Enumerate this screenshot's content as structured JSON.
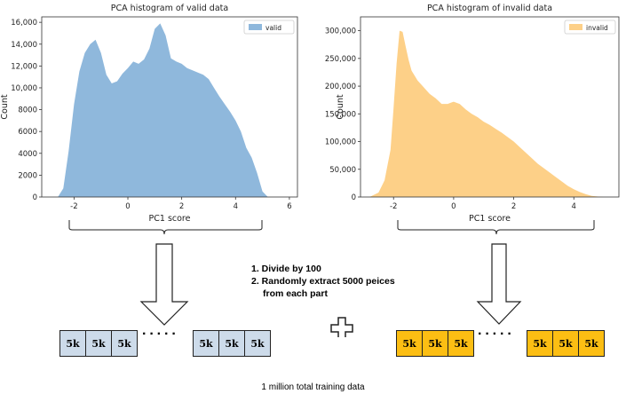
{
  "chart_data": [
    {
      "type": "area",
      "title": "PCA histogram of valid data",
      "xlabel": "PC1 score",
      "ylabel": "Count",
      "xlim": [
        -3.2,
        6.3
      ],
      "ylim": [
        0,
        16500
      ],
      "xticks": [
        -2,
        0,
        2,
        4,
        6
      ],
      "yticks": [
        0,
        2000,
        4000,
        6000,
        8000,
        10000,
        12000,
        14000,
        16000
      ],
      "ytick_labels": [
        "0",
        "2000",
        "4000",
        "6000",
        "8000",
        "10,000",
        "12,000",
        "14,000",
        "16,000"
      ],
      "legend_placement": "top-right",
      "color": "#8fb8dc",
      "series": [
        {
          "name": "valid",
          "x": [
            -2.6,
            -2.4,
            -2.2,
            -2.0,
            -1.8,
            -1.6,
            -1.4,
            -1.2,
            -1.0,
            -0.8,
            -0.6,
            -0.4,
            -0.2,
            0.0,
            0.2,
            0.4,
            0.6,
            0.8,
            1.0,
            1.2,
            1.4,
            1.6,
            1.8,
            2.0,
            2.2,
            2.4,
            2.6,
            2.8,
            3.0,
            3.2,
            3.4,
            3.6,
            3.8,
            4.0,
            4.2,
            4.4,
            4.6,
            4.8,
            5.0,
            5.2
          ],
          "y": [
            0,
            800,
            4200,
            8500,
            11500,
            13200,
            14000,
            14400,
            13200,
            11200,
            10400,
            10600,
            11300,
            11800,
            12400,
            12200,
            12600,
            13600,
            15400,
            15900,
            14800,
            12700,
            12400,
            12200,
            11800,
            11600,
            11400,
            11200,
            10800,
            10000,
            9200,
            8500,
            7800,
            7000,
            6000,
            4500,
            3600,
            2200,
            500,
            0
          ]
        }
      ]
    },
    {
      "type": "area",
      "title": "PCA histogram of invalid data",
      "xlabel": "PC1 score",
      "ylabel": "Count",
      "xlim": [
        -3.1,
        5.5
      ],
      "ylim": [
        0,
        325000
      ],
      "xticks": [
        -2,
        0,
        2,
        4
      ],
      "yticks": [
        0,
        50000,
        100000,
        150000,
        200000,
        250000,
        300000
      ],
      "ytick_labels": [
        "0",
        "50,000",
        "100,000",
        "150,000",
        "200,000",
        "250,000",
        "300,000"
      ],
      "legend_placement": "top-right",
      "color": "#fdd088",
      "series": [
        {
          "name": "invalid",
          "x": [
            -2.8,
            -2.5,
            -2.3,
            -2.1,
            -2.0,
            -1.9,
            -1.8,
            -1.7,
            -1.6,
            -1.5,
            -1.4,
            -1.2,
            -1.0,
            -0.8,
            -0.6,
            -0.4,
            -0.2,
            0.0,
            0.2,
            0.4,
            0.6,
            0.8,
            1.0,
            1.2,
            1.4,
            1.6,
            1.8,
            2.0,
            2.2,
            2.4,
            2.6,
            2.8,
            3.0,
            3.2,
            3.4,
            3.6,
            3.8,
            4.0,
            4.2,
            4.4,
            4.6,
            4.8,
            5.0
          ],
          "y": [
            0,
            8000,
            30000,
            85000,
            160000,
            240000,
            300000,
            298000,
            272000,
            248000,
            228000,
            210000,
            198000,
            186000,
            178000,
            168000,
            168000,
            172000,
            168000,
            158000,
            150000,
            144000,
            136000,
            130000,
            123000,
            116000,
            108000,
            100000,
            90000,
            80000,
            70000,
            60000,
            52000,
            44000,
            36000,
            28000,
            20000,
            14000,
            9000,
            5000,
            2000,
            800,
            0
          ]
        }
      ]
    }
  ],
  "steps": {
    "step1": "1. Divide by 100",
    "step2": "2. Randomly extract 5000 peices",
    "step2b": "from each part"
  },
  "box_label": "5k",
  "dots": "·····",
  "footer": "1 million total training data",
  "colors": {
    "valid_box": "#cddbea",
    "invalid_box": "#fcbe13"
  }
}
